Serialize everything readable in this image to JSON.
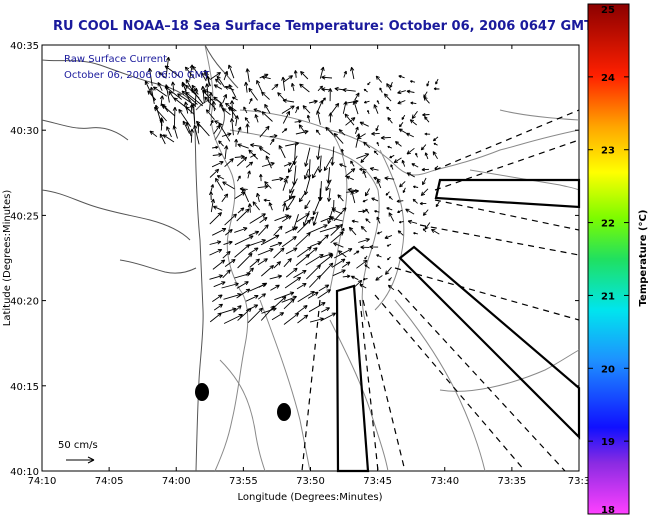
{
  "title": "RU COOL  NOAA–18  Sea Surface Temperature:  October 06, 2006 0647 GMT",
  "legend": {
    "line1": "Raw Surface Current",
    "line2": "October 06, 2006 06:00 GMT"
  },
  "scale_label": "50 cm/s",
  "colorbar": {
    "label": "Temperature (°C)",
    "min": 18,
    "max": 25,
    "ticks": [
      "25",
      "24",
      "23",
      "22",
      "21",
      "20",
      "19",
      "18"
    ]
  },
  "map": {
    "xlabel": "Longitude (Degrees:Minutes)",
    "ylabel": "Latitude (Degrees:Minutes)",
    "x_ticks": [
      "74:10",
      "74:05",
      "74:00",
      "73:55",
      "73:50",
      "73:45",
      "73:40",
      "73:35",
      "73:3"
    ],
    "y_ticks": [
      "40:35",
      "40:30",
      "40:25",
      "40:20",
      "40:15",
      "40:10"
    ],
    "lon_range": [
      -74.1667,
      -73.5
    ],
    "lat_range": [
      40.1667,
      40.5833
    ],
    "markers": [
      {
        "name": "marker-1",
        "lon": -73.98,
        "lat": 40.243
      },
      {
        "name": "marker-2",
        "lon": -73.905,
        "lat": 40.225
      }
    ]
  }
}
